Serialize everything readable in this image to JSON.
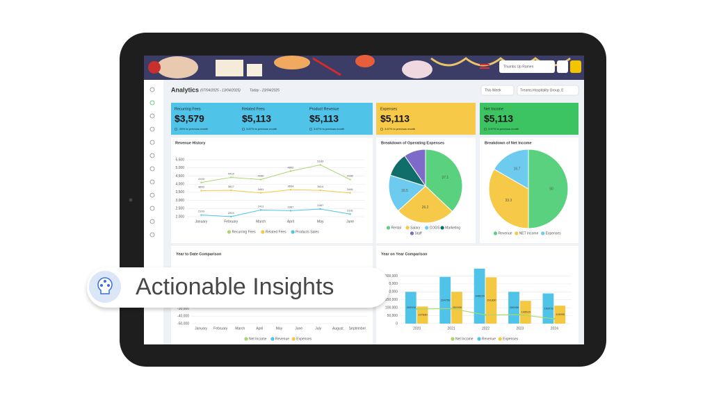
{
  "header": {
    "restaurant": "Thumbs Up Ramen",
    "title": "Analytics",
    "range": "(07/04/2025 - 13/04/2025)",
    "today": "Today - 23/04/2025",
    "period": "This Week",
    "group": "Treams Hospitality Group, E"
  },
  "cards": [
    {
      "label": "Recurring Fees",
      "value": "$3,579",
      "change": "-90% to previous month"
    },
    {
      "label": "Related Fees",
      "value": "$5,113",
      "change": "3.67% to previous month"
    },
    {
      "label": "Product Revenue",
      "value": "$5,113",
      "change": "3.67% to previous month"
    },
    {
      "label": "Expenses",
      "value": "$5,113",
      "change": "3.67% to previous month"
    },
    {
      "label": "Net Income",
      "value": "$5,113",
      "change": "3.67% to previous month"
    }
  ],
  "chart_data": [
    {
      "type": "line",
      "title": "Revenue History",
      "categories": [
        "January",
        "February",
        "March",
        "April",
        "May",
        "June"
      ],
      "ylim": [
        2000,
        5500
      ],
      "yticks": [
        {
          "value": 2000,
          "label": "2,000"
        },
        {
          "value": 2500,
          "label": "2,500"
        },
        {
          "value": 3000,
          "label": "3,000"
        },
        {
          "value": 3500,
          "label": "3,500"
        },
        {
          "value": 4000,
          "label": "4,000"
        },
        {
          "value": 4500,
          "label": "4,500"
        },
        {
          "value": 5000,
          "label": "5,000"
        },
        {
          "value": 5500,
          "label": "5,500"
        }
      ],
      "series": [
        {
          "name": "Recurring Fees",
          "color": "#a8d86e",
          "values": [
            4100,
            4414,
            4282,
            4802,
            5183,
            4282
          ]
        },
        {
          "name": "Related Fees",
          "color": "#f5c842",
          "values": [
            3600,
            3617,
            3461,
            3654,
            3614,
            3461
          ]
        },
        {
          "name": "Products Sales",
          "color": "#4fc3e8",
          "values": [
            2100,
            2004,
            2411,
            2367,
            2467,
            2161
          ]
        }
      ]
    },
    {
      "type": "pie",
      "title": "Breakdown of Operating Expenses",
      "categories": [
        "Rental",
        "Salary",
        "COGS",
        "Marketing",
        "Staff"
      ],
      "values": [
        37.1,
        26.2,
        16.5,
        10.6,
        9.6
      ],
      "value_labels": [
        "37.1",
        "26.2",
        "16.5",
        null,
        null
      ],
      "colors": [
        "#5ad17e",
        "#f7c948",
        "#6dcbef",
        "#0f6e6a",
        "#7e6bc9"
      ]
    },
    {
      "type": "pie",
      "title": "Breakdown of Net Income",
      "categories": [
        "Revenue",
        "NET Income",
        "Expenses"
      ],
      "values": [
        50,
        33.3,
        16.7
      ],
      "colors": [
        "#5ad17e",
        "#f7c948",
        "#6dcbef"
      ]
    },
    {
      "type": "bar",
      "title": "Year to Date Comparison",
      "categories": [
        "January",
        "February",
        "March",
        "April",
        "May",
        "June",
        "July",
        "August",
        "September"
      ],
      "ylim": [
        -50000,
        30000
      ],
      "yticks": [
        {
          "value": -30000,
          "label": "-30,000"
        },
        {
          "value": -40000,
          "label": "-40,000"
        },
        {
          "value": -50000,
          "label": "-50,000"
        }
      ],
      "series": [
        {
          "name": "Net Income",
          "color": "#a8d86e"
        },
        {
          "name": "Revenue",
          "color": "#4fc3e8"
        },
        {
          "name": "Expenses",
          "color": "#f5c842"
        }
      ]
    },
    {
      "type": "bar",
      "title": "Year on Year Comparison",
      "categories": [
        "2020",
        "2021",
        "2022",
        "2023",
        "2024"
      ],
      "ylim": [
        0,
        350000
      ],
      "yticks": [
        0,
        {
          "value": 50000,
          "label": "50,000"
        },
        {
          "value": 100000,
          "label": "100,000"
        },
        {
          "value": 150000,
          "label": "150,000"
        },
        {
          "value": 200000,
          "label": "200,000"
        },
        {
          "value": 250000,
          "label": "250,000"
        },
        {
          "value": 300000,
          "label": "300,000"
        }
      ],
      "series": [
        {
          "name": "Net Income",
          "color": "#a8d86e",
          "type": "line",
          "values": [
            92170,
            94750,
            54399,
            56471,
            30079
          ]
        },
        {
          "name": "Revenue",
          "color": "#4fc3e8",
          "values": [
            200000,
            294750,
            346229,
            200000,
            190079
          ]
        },
        {
          "name": "Expenses",
          "color": "#f5c842",
          "values": [
            107830,
            200000,
            291830,
            143529,
            113000
          ]
        }
      ]
    }
  ],
  "overlay": {
    "text": "Actionable Insights"
  }
}
